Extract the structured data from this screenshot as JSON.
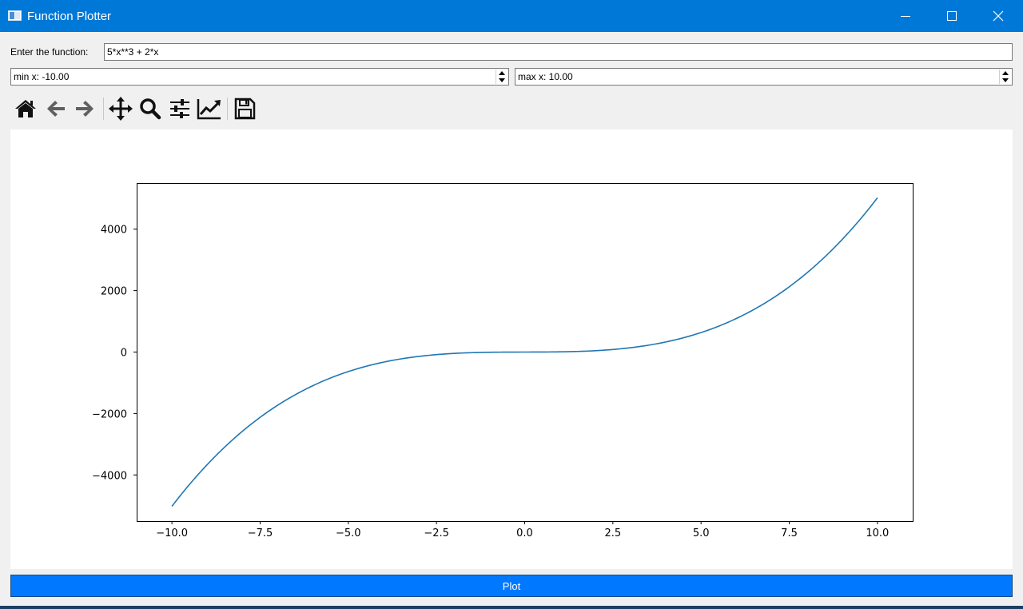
{
  "window": {
    "title": "Function Plotter",
    "accent_color": "#0078d7"
  },
  "form": {
    "function_label": "Enter the function:",
    "function_value": "5*x**3 + 2*x",
    "min_x": "min x: -10.00",
    "max_x": "max x: 10.00"
  },
  "toolbar": {
    "icons": [
      "home-icon",
      "back-icon",
      "forward-icon",
      "pan-icon",
      "zoom-icon",
      "configure-subplots-icon",
      "edit-axis-icon",
      "save-icon"
    ]
  },
  "plot_button": {
    "label": "Plot",
    "color": "#0078ff"
  },
  "chart_data": {
    "type": "line",
    "function": "5*x**3 + 2*x",
    "x_range": [
      -10,
      10
    ],
    "xlim": [
      -11,
      11
    ],
    "ylim": [
      -5502,
      5502
    ],
    "x_ticks": [
      -10.0,
      -7.5,
      -5.0,
      -2.5,
      0.0,
      2.5,
      5.0,
      7.5,
      10.0
    ],
    "x_tick_labels": [
      "−10.0",
      "−7.5",
      "−5.0",
      "−2.5",
      "0.0",
      "2.5",
      "5.0",
      "7.5",
      "10.0"
    ],
    "y_ticks": [
      -4000,
      -2000,
      0,
      2000,
      4000
    ],
    "y_tick_labels": [
      "−4000",
      "−2000",
      "0",
      "2000",
      "4000"
    ],
    "series": [
      {
        "name": "5*x**3 + 2*x",
        "color": "#1f77b4",
        "x": [
          -10,
          -9,
          -8,
          -7,
          -6,
          -5,
          -4,
          -3,
          -2,
          -1,
          0,
          1,
          2,
          3,
          4,
          5,
          6,
          7,
          8,
          9,
          10
        ],
        "y": [
          -5020,
          -3663,
          -2576,
          -1729,
          -1092,
          -635,
          -328,
          -141,
          -44,
          -7,
          0,
          7,
          44,
          141,
          328,
          635,
          1092,
          1729,
          2576,
          3663,
          5020
        ]
      }
    ],
    "grid": false,
    "title": "",
    "xlabel": "",
    "ylabel": ""
  }
}
